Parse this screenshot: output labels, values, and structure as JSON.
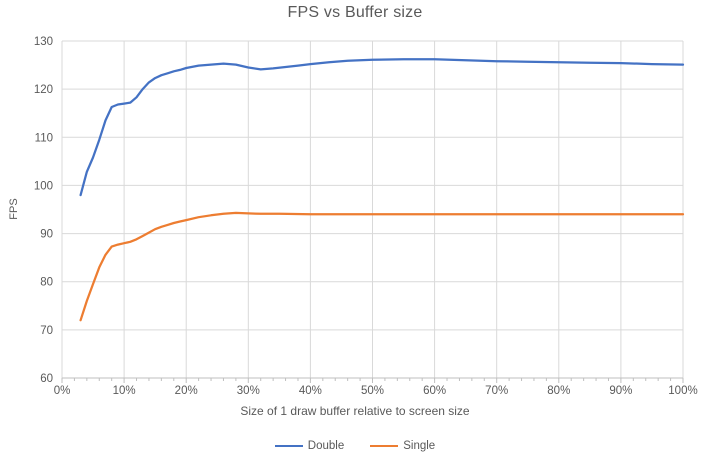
{
  "colors": {
    "series_double": "#4472C4",
    "series_single": "#ED7D31",
    "gridline": "#D9D9D9",
    "axis_line": "#BFBFBF",
    "tick_mark": "#BFBFBF",
    "text": "#595959",
    "background": "#FFFFFF"
  },
  "chart_data": {
    "type": "line",
    "title": "FPS vs Buffer size",
    "xlabel": "Size of 1 draw buffer relative to screen size",
    "ylabel": "FPS",
    "xlim": [
      0,
      100
    ],
    "ylim": [
      60,
      130
    ],
    "grid": true,
    "legend_position": "bottom",
    "x_tick_values": [
      0,
      10,
      20,
      30,
      40,
      50,
      60,
      70,
      80,
      90,
      100
    ],
    "x_tick_labels": [
      "0%",
      "10%",
      "20%",
      "30%",
      "40%",
      "50%",
      "60%",
      "70%",
      "80%",
      "90%",
      "100%"
    ],
    "x_minor_tick_step": 2,
    "y_tick_values": [
      60,
      70,
      80,
      90,
      100,
      110,
      120,
      130
    ],
    "y_tick_labels": [
      "60",
      "70",
      "80",
      "90",
      "100",
      "110",
      "120",
      "130"
    ],
    "series": [
      {
        "name": "Double",
        "color": "#4472C4",
        "points": [
          [
            3,
            98
          ],
          [
            4,
            102.8
          ],
          [
            5,
            105.8
          ],
          [
            6,
            109.5
          ],
          [
            7,
            113.5
          ],
          [
            8,
            116.3
          ],
          [
            9,
            116.8
          ],
          [
            10,
            117
          ],
          [
            11,
            117.2
          ],
          [
            12,
            118.3
          ],
          [
            13,
            120
          ],
          [
            14,
            121.4
          ],
          [
            15,
            122.3
          ],
          [
            16,
            122.9
          ],
          [
            17,
            123.3
          ],
          [
            18,
            123.7
          ],
          [
            19,
            124
          ],
          [
            20,
            124.4
          ],
          [
            22,
            124.9
          ],
          [
            24,
            125.1
          ],
          [
            26,
            125.3
          ],
          [
            28,
            125.1
          ],
          [
            30,
            124.5
          ],
          [
            32,
            124.1
          ],
          [
            34,
            124.3
          ],
          [
            36,
            124.6
          ],
          [
            38,
            124.9
          ],
          [
            40,
            125.2
          ],
          [
            43,
            125.6
          ],
          [
            46,
            125.9
          ],
          [
            50,
            126.1
          ],
          [
            55,
            126.2
          ],
          [
            60,
            126.2
          ],
          [
            65,
            126
          ],
          [
            70,
            125.8
          ],
          [
            75,
            125.7
          ],
          [
            80,
            125.6
          ],
          [
            85,
            125.5
          ],
          [
            90,
            125.4
          ],
          [
            95,
            125.2
          ],
          [
            100,
            125.1
          ]
        ]
      },
      {
        "name": "Single",
        "color": "#ED7D31",
        "points": [
          [
            3,
            72
          ],
          [
            4,
            76
          ],
          [
            5,
            79.5
          ],
          [
            6,
            83
          ],
          [
            7,
            85.6
          ],
          [
            8,
            87.3
          ],
          [
            9,
            87.7
          ],
          [
            10,
            88
          ],
          [
            11,
            88.3
          ],
          [
            12,
            88.8
          ],
          [
            13,
            89.5
          ],
          [
            14,
            90.2
          ],
          [
            15,
            90.9
          ],
          [
            16,
            91.4
          ],
          [
            17,
            91.8
          ],
          [
            18,
            92.2
          ],
          [
            19,
            92.5
          ],
          [
            20,
            92.8
          ],
          [
            22,
            93.4
          ],
          [
            24,
            93.8
          ],
          [
            26,
            94.1
          ],
          [
            28,
            94.3
          ],
          [
            30,
            94.2
          ],
          [
            32,
            94.1
          ],
          [
            35,
            94.1
          ],
          [
            40,
            94
          ],
          [
            45,
            94
          ],
          [
            50,
            94
          ],
          [
            60,
            94
          ],
          [
            70,
            94
          ],
          [
            80,
            94
          ],
          [
            90,
            94
          ],
          [
            100,
            94
          ]
        ]
      }
    ]
  }
}
